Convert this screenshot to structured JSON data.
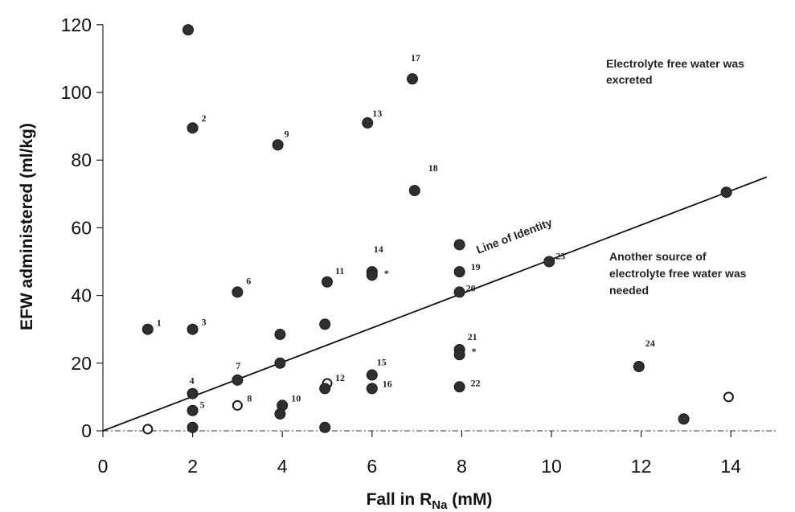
{
  "chart_data": {
    "type": "scatter",
    "xlabel_main": "Fall in R",
    "xlabel_sub": "Na",
    "xlabel_tail": " (mM)",
    "ylabel": "EFW administered (ml/kg)",
    "xlim": [
      0,
      15
    ],
    "ylim": [
      0,
      120
    ],
    "xticks": [
      0,
      2,
      4,
      6,
      8,
      10,
      12,
      14
    ],
    "yticks": [
      0,
      20,
      40,
      60,
      80,
      100,
      120
    ],
    "grid": false,
    "identity_line": {
      "label": "Line of Identity",
      "from": [
        0,
        0
      ],
      "to": [
        14.8,
        75
      ]
    },
    "annotations": [
      {
        "lines": [
          "Electrolyte free water was",
          "excreted"
        ]
      },
      {
        "lines": [
          "Another source of",
          "electrolyte free water was",
          "needed"
        ]
      }
    ],
    "asterisk": "*",
    "points": [
      {
        "x": 1,
        "y": 30,
        "label": "1",
        "filled": true
      },
      {
        "x": 2,
        "y": 89.5,
        "label": "2",
        "filled": true
      },
      {
        "x": 2,
        "y": 30,
        "label": "3",
        "filled": true
      },
      {
        "x": 2,
        "y": 11,
        "label": "4",
        "filled": true
      },
      {
        "x": 2,
        "y": 6,
        "label": "5",
        "filled": true
      },
      {
        "x": 3,
        "y": 41,
        "label": "6",
        "filled": true
      },
      {
        "x": 3,
        "y": 15,
        "label": "7",
        "filled": true
      },
      {
        "x": 3,
        "y": 7.5,
        "label": "8",
        "filled": false
      },
      {
        "x": 3.9,
        "y": 84.5,
        "label": "9",
        "filled": true
      },
      {
        "x": 4,
        "y": 7.5,
        "label": "10",
        "filled": true
      },
      {
        "x": 5,
        "y": 44,
        "label": "11",
        "filled": true
      },
      {
        "x": 5,
        "y": 14,
        "label": "12",
        "filled": false
      },
      {
        "x": 5.9,
        "y": 91,
        "label": "13",
        "filled": true
      },
      {
        "x": 6,
        "y": 47,
        "label": "14",
        "filled": true,
        "asterisk": true
      },
      {
        "x": 6,
        "y": 16.5,
        "label": "15",
        "filled": true
      },
      {
        "x": 6,
        "y": 12.5,
        "label": "16",
        "filled": true
      },
      {
        "x": 6.9,
        "y": 104,
        "label": "17",
        "filled": true
      },
      {
        "x": 6.95,
        "y": 71,
        "label": "18",
        "filled": true
      },
      {
        "x": 7.95,
        "y": 47,
        "label": "19",
        "filled": true
      },
      {
        "x": 7.95,
        "y": 41,
        "label": "20",
        "filled": true
      },
      {
        "x": 7.95,
        "y": 24,
        "label": "21",
        "filled": true,
        "asterisk": true
      },
      {
        "x": 7.95,
        "y": 13,
        "label": "22",
        "filled": true
      },
      {
        "x": 9.95,
        "y": 50,
        "label": "23",
        "filled": true
      },
      {
        "x": 11.95,
        "y": 19,
        "label": "24",
        "filled": true
      },
      {
        "x": 1.9,
        "y": 118.5,
        "label": "",
        "filled": true
      },
      {
        "x": 1,
        "y": 0.5,
        "label": "",
        "filled": false
      },
      {
        "x": 2,
        "y": 1,
        "label": "",
        "filled": true
      },
      {
        "x": 3.95,
        "y": 28.5,
        "label": "",
        "filled": true
      },
      {
        "x": 3.95,
        "y": 20,
        "label": "",
        "filled": true
      },
      {
        "x": 3.95,
        "y": 5,
        "label": "",
        "filled": true
      },
      {
        "x": 4.95,
        "y": 31.5,
        "label": "",
        "filled": true
      },
      {
        "x": 4.95,
        "y": 12.5,
        "label": "",
        "filled": true
      },
      {
        "x": 4.95,
        "y": 1,
        "label": "",
        "filled": true
      },
      {
        "x": 6,
        "y": 46,
        "label": "",
        "filled": true
      },
      {
        "x": 7.95,
        "y": 55,
        "label": "",
        "filled": true
      },
      {
        "x": 7.95,
        "y": 22.5,
        "label": "",
        "filled": true
      },
      {
        "x": 12.95,
        "y": 3.5,
        "label": "",
        "filled": true
      },
      {
        "x": 13.9,
        "y": 70.5,
        "label": "",
        "filled": true
      },
      {
        "x": 13.95,
        "y": 10,
        "label": "",
        "filled": false
      }
    ]
  }
}
